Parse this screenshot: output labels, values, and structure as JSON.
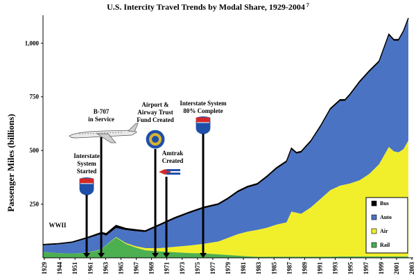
{
  "chart_data": {
    "type": "area",
    "stacked": true,
    "title": "U.S. Intercity Travel Trends by Modal Share, 1929-2004",
    "title_superscript": "7",
    "ylabel": "Passenger Miles (billions)",
    "ylim": [
      0,
      1130
    ],
    "xlim": [
      1929,
      2005
    ],
    "yticks": [
      250,
      500,
      750,
      1000
    ],
    "ytick_labels": [
      "250",
      "500",
      "750",
      "1,000"
    ],
    "xticks": [
      1929,
      1944,
      1951,
      1961,
      1963,
      1965,
      1967,
      1969,
      1971,
      1973,
      1975,
      1977,
      1979,
      1981,
      1983,
      1985,
      1987,
      1989,
      1991,
      1993,
      1995,
      1997,
      1999,
      2001,
      2003
    ],
    "grid": false,
    "legend_position": "bottom-right",
    "x": [
      1929,
      1932,
      1935,
      1938,
      1941,
      1942,
      1944,
      1946,
      1948,
      1950,
      1953,
      1956,
      1959,
      1962,
      1965,
      1967,
      1969,
      1971,
      1973,
      1975,
      1977,
      1979,
      1980,
      1981,
      1982,
      1984,
      1986,
      1988,
      1990,
      1991,
      1992,
      1994,
      1996,
      1998,
      2000,
      2001,
      2002,
      2003,
      2004
    ],
    "series": [
      {
        "name": "Rail",
        "color": "#4caf50",
        "values": [
          28,
          22,
          20,
          24,
          38,
          60,
          95,
          65,
          48,
          35,
          30,
          26,
          22,
          20,
          16,
          13,
          10,
          7,
          5,
          5,
          5,
          5,
          5,
          5,
          5,
          5,
          5,
          5,
          6,
          6,
          6,
          6,
          6,
          6,
          6,
          6,
          6,
          6,
          6
        ]
      },
      {
        "name": "Air",
        "color": "#f1ef2c",
        "values": [
          0,
          0,
          0,
          0,
          1,
          1,
          2,
          4,
          6,
          10,
          15,
          25,
          35,
          45,
          60,
          80,
          100,
          115,
          125,
          135,
          150,
          160,
          210,
          205,
          200,
          230,
          270,
          310,
          330,
          335,
          340,
          355,
          385,
          430,
          510,
          490,
          485,
          500,
          540
        ]
      },
      {
        "name": "Auto",
        "color": "#4a73c4",
        "values": [
          30,
          40,
          50,
          65,
          72,
          42,
          42,
          60,
          70,
          75,
          105,
          130,
          150,
          165,
          170,
          180,
          195,
          205,
          210,
          235,
          260,
          280,
          290,
          275,
          285,
          305,
          335,
          375,
          395,
          390,
          410,
          455,
          475,
          475,
          520,
          515,
          520,
          545,
          565
        ]
      },
      {
        "name": "Bus",
        "color": "#000000",
        "values": [
          4,
          4,
          4,
          5,
          7,
          10,
          12,
          8,
          7,
          6,
          6,
          6,
          6,
          6,
          6,
          6,
          6,
          6,
          6,
          6,
          6,
          6,
          6,
          6,
          6,
          6,
          6,
          6,
          6,
          6,
          6,
          6,
          6,
          6,
          6,
          6,
          6,
          6,
          6
        ]
      }
    ],
    "annotations": [
      {
        "id": "wwii",
        "lines": [
          "WWII"
        ],
        "year": 1943
      },
      {
        "id": "interstate-started",
        "lines": [
          "Interstate",
          "System",
          "Started"
        ],
        "year": 1956,
        "icon": "interstate-shield-icon"
      },
      {
        "id": "b707",
        "lines": [
          "B-707",
          "in Service"
        ],
        "year": 1958,
        "icon": "jet-airplane-icon"
      },
      {
        "id": "airport-fund",
        "lines": [
          "Airport &",
          "Airway Trust",
          "Fund Created"
        ],
        "year": 1970,
        "icon": "faa-seal-icon"
      },
      {
        "id": "amtrak",
        "lines": [
          "Amtrak",
          "Created"
        ],
        "year": 1971,
        "icon": "amtrak-logo-icon"
      },
      {
        "id": "interstate-80",
        "lines": [
          "Interstate System",
          "80% Complete"
        ],
        "year": 1976,
        "icon": "interstate-shield-icon"
      }
    ]
  }
}
